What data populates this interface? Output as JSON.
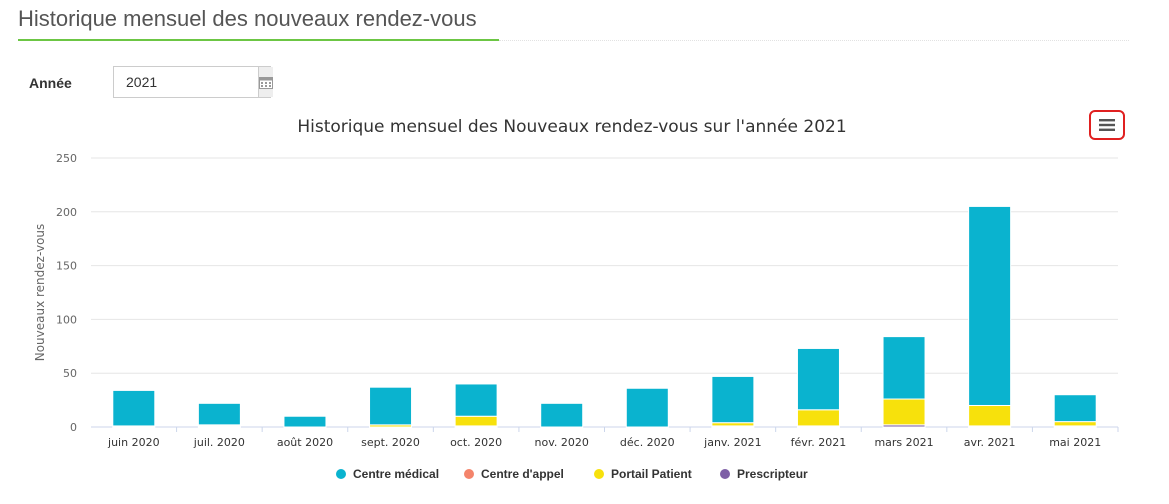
{
  "page": {
    "title": "Historique mensuel des nouveaux rendez-vous"
  },
  "filter": {
    "year_label": "Année",
    "year_value": "2021",
    "calendar_icon": "calendar-icon"
  },
  "menu_icon": "hamburger-menu-icon",
  "colors": {
    "Centre médical": "#0ab3cf",
    "Centre d'appel": "#f4846b",
    "Portail Patient": "#f7e10c",
    "Prescripteur": "#7e5fa6",
    "title_underline": "#6cc644"
  },
  "chart_data": {
    "type": "bar",
    "stacked": true,
    "title": "Historique mensuel des Nouveaux rendez-vous sur l'année 2021",
    "xlabel": "",
    "ylabel": "Nouveaux rendez-vous",
    "ylim": [
      0,
      250
    ],
    "yticks": [
      0,
      50,
      100,
      150,
      200,
      250
    ],
    "grid": true,
    "legend_position": "bottom",
    "categories": [
      "juin 2020",
      "juil. 2020",
      "août 2020",
      "sept. 2020",
      "oct. 2020",
      "nov. 2020",
      "déc. 2020",
      "janv. 2021",
      "févr. 2021",
      "mars 2021",
      "avr. 2021",
      "mai 2021"
    ],
    "series": [
      {
        "name": "Centre médical",
        "values": [
          33,
          20,
          10,
          35,
          30,
          22,
          36,
          43,
          57,
          58,
          185,
          25
        ]
      },
      {
        "name": "Centre d'appel",
        "values": [
          0,
          0,
          0,
          0,
          0,
          0,
          0,
          0,
          0,
          0,
          0,
          0
        ]
      },
      {
        "name": "Portail Patient",
        "values": [
          1,
          1,
          0,
          2,
          9,
          0,
          0,
          3,
          15,
          24,
          19,
          4
        ]
      },
      {
        "name": "Prescripteur",
        "values": [
          0,
          1,
          0,
          0,
          1,
          0,
          0,
          1,
          1,
          2,
          1,
          1
        ]
      }
    ]
  }
}
